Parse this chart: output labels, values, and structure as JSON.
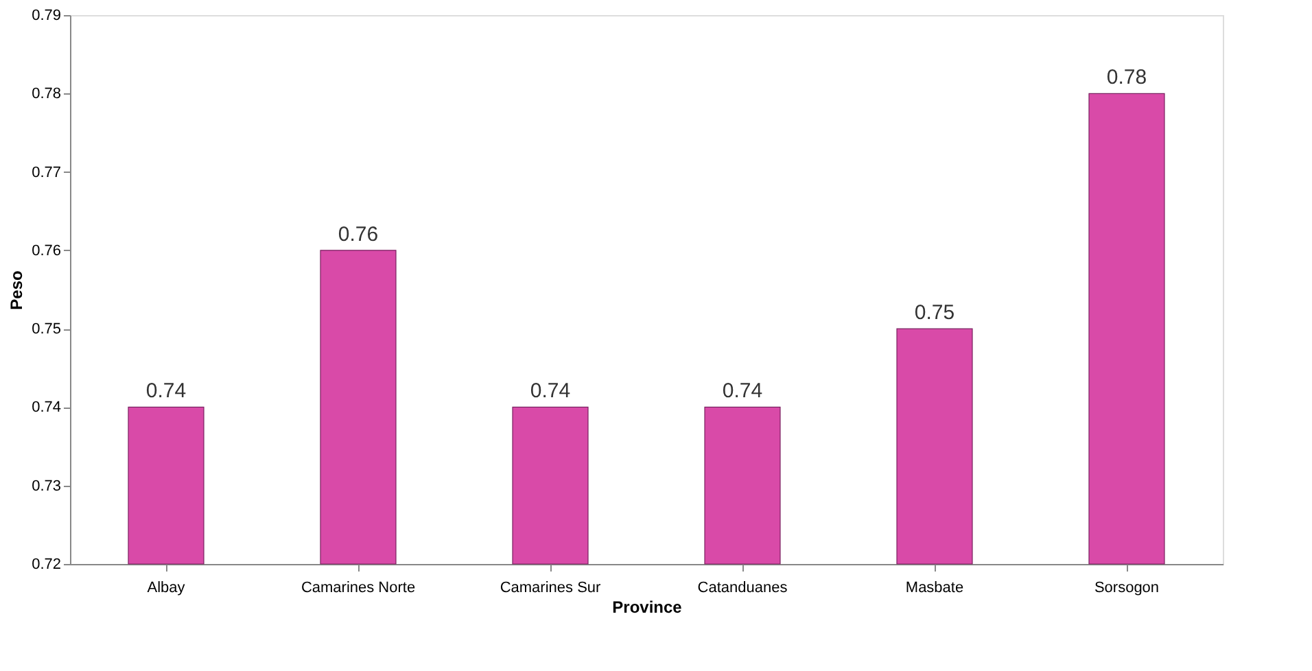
{
  "chart_data": {
    "type": "bar",
    "xlabel": "Province",
    "ylabel": "Peso",
    "categories": [
      "Albay",
      "Camarines Norte",
      "Camarines Sur",
      "Catanduanes",
      "Masbate",
      "Sorsogon"
    ],
    "values": [
      0.74,
      0.76,
      0.74,
      0.74,
      0.75,
      0.78
    ],
    "color": "#d94aa8",
    "ylim": [
      0.72,
      0.79
    ],
    "yticks": [
      0.72,
      0.73,
      0.74,
      0.75,
      0.76,
      0.77,
      0.78,
      0.79
    ],
    "grid": false,
    "data_labels": true
  }
}
